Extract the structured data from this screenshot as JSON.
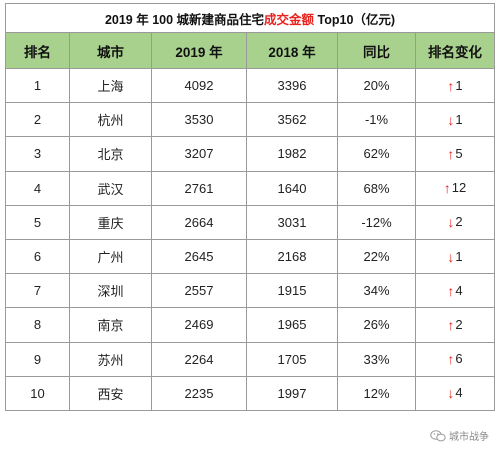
{
  "title": {
    "prefix": "2019 年 100 城新建商品住宅",
    "highlight": "成交金额",
    "suffix": " Top10（亿元)"
  },
  "columns": [
    "排名",
    "城市",
    "2019 年",
    "2018 年",
    "同比",
    "排名变化"
  ],
  "rows": [
    {
      "rank": "1",
      "city": "上海",
      "y2019": "4092",
      "y2018": "3396",
      "yoy": "20%",
      "change": "1",
      "dir": "up"
    },
    {
      "rank": "2",
      "city": "杭州",
      "y2019": "3530",
      "y2018": "3562",
      "yoy": "-1%",
      "change": "1",
      "dir": "down"
    },
    {
      "rank": "3",
      "city": "北京",
      "y2019": "3207",
      "y2018": "1982",
      "yoy": "62%",
      "change": "5",
      "dir": "up"
    },
    {
      "rank": "4",
      "city": "武汉",
      "y2019": "2761",
      "y2018": "1640",
      "yoy": "68%",
      "change": "12",
      "dir": "up"
    },
    {
      "rank": "5",
      "city": "重庆",
      "y2019": "2664",
      "y2018": "3031",
      "yoy": "-12%",
      "change": "2",
      "dir": "down"
    },
    {
      "rank": "6",
      "city": "广州",
      "y2019": "2645",
      "y2018": "2168",
      "yoy": "22%",
      "change": "1",
      "dir": "down"
    },
    {
      "rank": "7",
      "city": "深圳",
      "y2019": "2557",
      "y2018": "1915",
      "yoy": "34%",
      "change": "4",
      "dir": "up"
    },
    {
      "rank": "8",
      "city": "南京",
      "y2019": "2469",
      "y2018": "1965",
      "yoy": "26%",
      "change": "2",
      "dir": "up"
    },
    {
      "rank": "9",
      "city": "苏州",
      "y2019": "2264",
      "y2018": "1705",
      "yoy": "33%",
      "change": "6",
      "dir": "up"
    },
    {
      "rank": "10",
      "city": "西安",
      "y2019": "2235",
      "y2018": "1997",
      "yoy": "12%",
      "change": "4",
      "dir": "down"
    }
  ],
  "arrows": {
    "up": "↑",
    "down": "↓"
  },
  "colors": {
    "header_bg": "#a9d18e",
    "highlight": "#e8231f",
    "arrow": "#e8231f"
  },
  "watermark": {
    "text": "城市战争",
    "icon": "wechat-icon"
  }
}
